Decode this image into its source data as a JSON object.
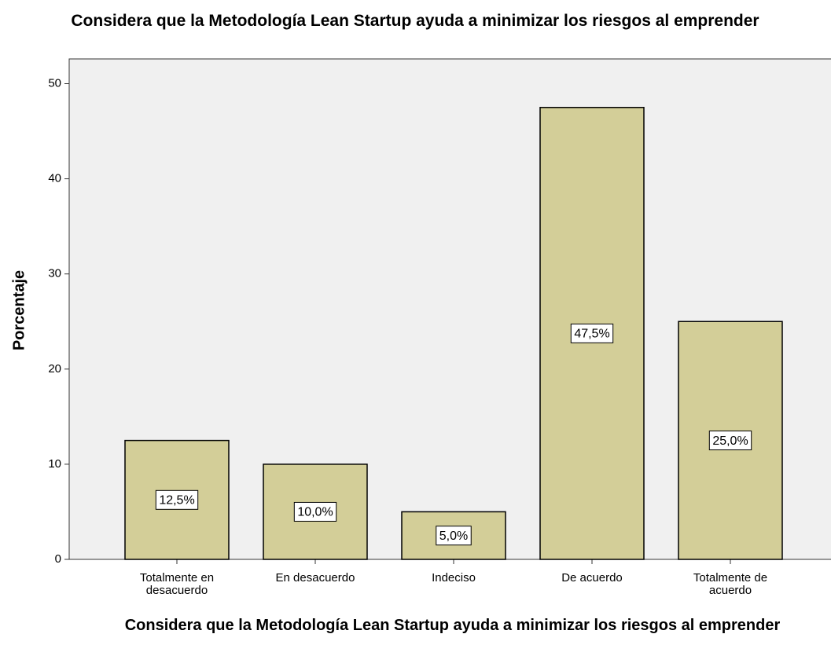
{
  "chart_data": {
    "type": "bar",
    "title": "Considera que la Metodología Lean Startup ayuda a minimizar los riesgos al emprender",
    "x_label": "Considera que la Metodología Lean Startup ayuda a minimizar los riesgos al emprender",
    "y_label": "Porcentaje",
    "categories": [
      "Totalmente en desacuerdo",
      "En desacuerdo",
      "Indeciso",
      "De acuerdo",
      "Totalmente de acuerdo"
    ],
    "values": [
      12.5,
      10,
      5,
      47.5,
      25
    ],
    "value_labels": [
      "12,5%",
      "10,0%",
      "5,0%",
      "47,5%",
      "25,0%"
    ],
    "color": "#d3ce98",
    "ylim": [
      0,
      52.6
    ],
    "yticks": [
      0,
      10,
      20,
      30,
      40,
      50
    ],
    "grid": false
  }
}
